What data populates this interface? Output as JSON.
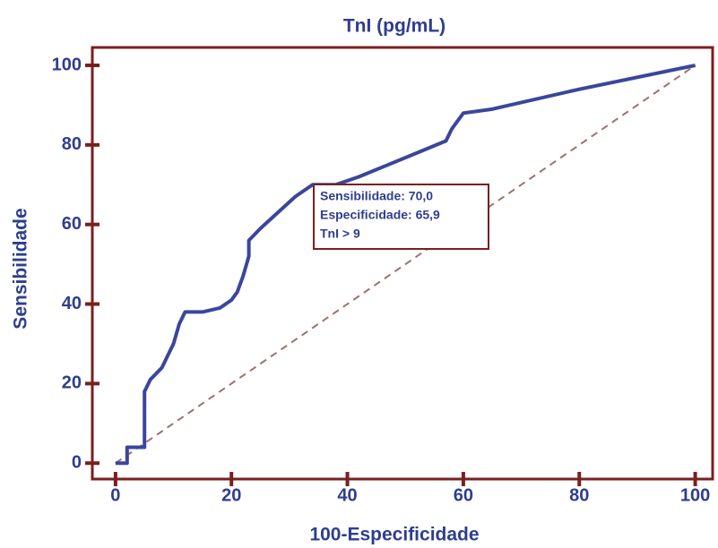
{
  "chart_data": {
    "type": "line",
    "title": "TnI (pg/mL)",
    "xlabel": "100-Especificidade",
    "ylabel": "Sensibilidade",
    "xlim": [
      -4,
      103
    ],
    "ylim": [
      -4,
      104.5
    ],
    "xticks": [
      0,
      20,
      40,
      60,
      80,
      100
    ],
    "yticks": [
      0,
      20,
      40,
      60,
      80,
      100
    ],
    "frame_color": "#7a1f1f",
    "series": [
      {
        "color": "#3a469c",
        "style": "solid",
        "x": [
          0,
          2,
          2,
          5,
          5,
          6,
          8,
          9,
          10,
          11,
          12,
          15,
          18,
          20,
          21,
          22,
          23,
          23,
          25,
          28,
          31,
          34,
          38,
          42,
          47,
          52,
          57,
          58,
          60,
          65,
          80,
          100
        ],
        "values": [
          0,
          0,
          4,
          4,
          18,
          21,
          24,
          27,
          30,
          35,
          38,
          38,
          39,
          41,
          43,
          47,
          52,
          56,
          59,
          63,
          67,
          70,
          70,
          72,
          75,
          78,
          81,
          84,
          88,
          89,
          94,
          100
        ]
      },
      {
        "color": "#a07070",
        "style": "dashed",
        "x": [
          0,
          100
        ],
        "values": [
          0,
          100
        ]
      }
    ],
    "annotations": [
      "Sensibilidade: 70,0",
      "Especificidade: 65,9",
      "TnI > 9"
    ]
  }
}
